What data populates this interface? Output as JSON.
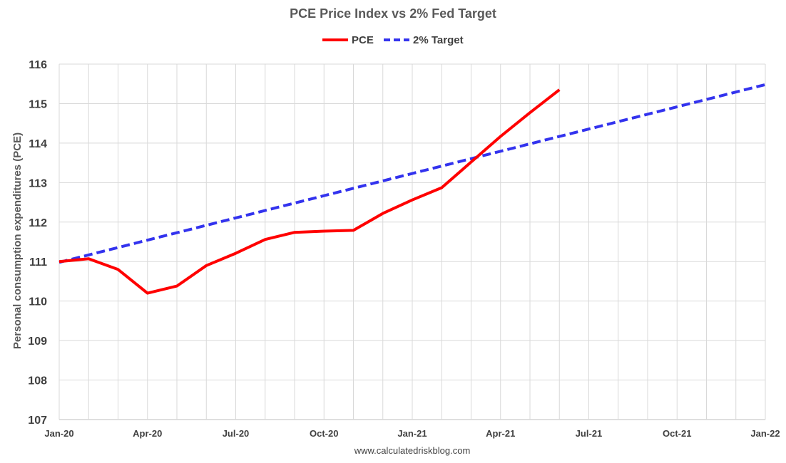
{
  "chart_data": {
    "type": "line",
    "title": "PCE Price Index vs 2% Fed Target",
    "xlabel": "",
    "ylabel": "Personal consumption expenditures (PCE)",
    "ylim": [
      107,
      116
    ],
    "yticks": [
      "107",
      "108",
      "109",
      "110",
      "111",
      "112",
      "113",
      "114",
      "115",
      "116"
    ],
    "xlim": [
      0,
      24
    ],
    "xticks": [
      {
        "pos": 0,
        "label": "Jan-20"
      },
      {
        "pos": 3,
        "label": "Apr-20"
      },
      {
        "pos": 6,
        "label": "Jul-20"
      },
      {
        "pos": 9,
        "label": "Oct-20"
      },
      {
        "pos": 12,
        "label": "Jan-21"
      },
      {
        "pos": 15,
        "label": "Apr-21"
      },
      {
        "pos": 18,
        "label": "Jul-21"
      },
      {
        "pos": 21,
        "label": "Oct-21"
      },
      {
        "pos": 24,
        "label": "Jan-22"
      }
    ],
    "grid": "vertical-monthly-and-horizontal",
    "legend_position": "top-center",
    "series": [
      {
        "name": "PCE",
        "color": "#ff0000",
        "style": "solid",
        "x": [
          0,
          1,
          2,
          3,
          4,
          5,
          6,
          7,
          8,
          9,
          10,
          11,
          12,
          13,
          14,
          15,
          16,
          17
        ],
        "values": [
          111.0,
          111.07,
          110.8,
          110.2,
          110.38,
          110.9,
          111.21,
          111.56,
          111.74,
          111.77,
          111.79,
          112.22,
          112.56,
          112.87,
          113.52,
          114.17,
          114.77,
          115.35
        ]
      },
      {
        "name": "2% Target",
        "color": "#3333ee",
        "style": "dashed",
        "x": [
          0,
          24
        ],
        "values": [
          110.98,
          115.48
        ]
      }
    ],
    "source": "www.calculatedriskblog.com"
  }
}
